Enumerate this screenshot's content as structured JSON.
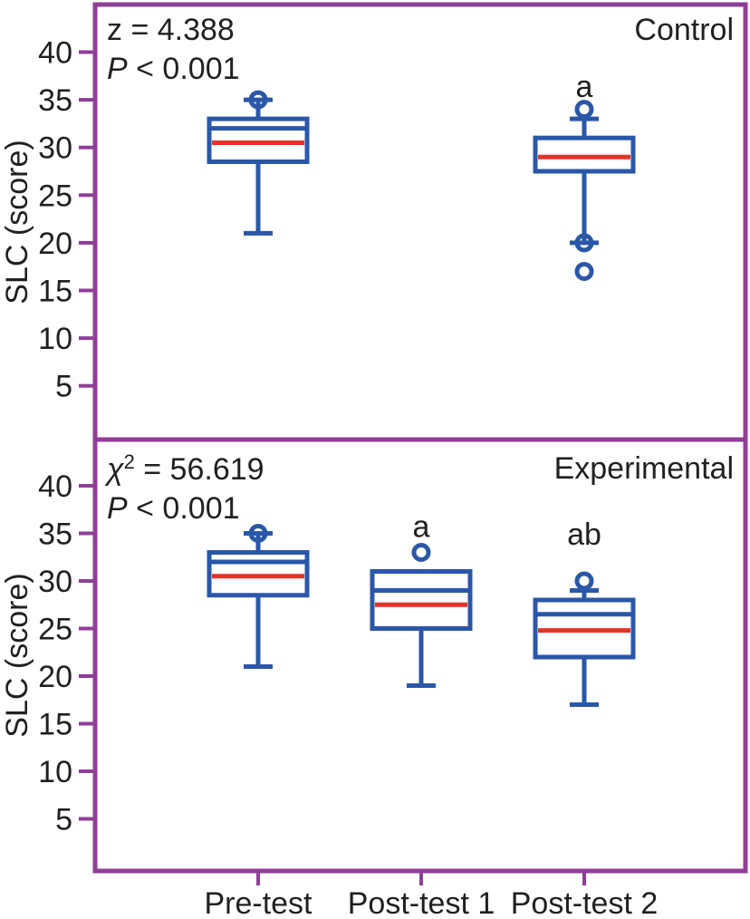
{
  "figure": {
    "x_axis_categories": [
      "Pre-test",
      "Post-test 1",
      "Post-test 2"
    ],
    "colors": {
      "frame_purple": "#8f3e97",
      "box_blue": "#2b57a8",
      "line_red": "#e53228",
      "text": "#231f20",
      "background": "#ffffff"
    }
  },
  "chart_data": [
    {
      "type": "box",
      "panel_label": "Control",
      "stat_line1": {
        "base": "z",
        "sup": "",
        "tail": " = 4.388",
        "italic_base": false
      },
      "stat_line2": {
        "base": "P",
        "sup": "",
        "tail": " < 0.001",
        "italic_base": true
      },
      "ylabel": "SLC (score)",
      "yticks": [
        5,
        10,
        15,
        20,
        25,
        30,
        35,
        40
      ],
      "ylim": [
        0,
        44
      ],
      "grid": false,
      "categories": [
        "Pre-test",
        "Post-test 1",
        "Post-test 2"
      ],
      "boxes": [
        {
          "category": "Pre-test",
          "cat_index": 0,
          "whisker_low": 21,
          "q1": 28.5,
          "median_blue": 32,
          "red_line": 30.5,
          "q3": 33,
          "whisker_high": 35,
          "outliers": [
            35
          ],
          "sig": "",
          "sig_v": null
        },
        {
          "category": "Post-test 2",
          "cat_index": 2,
          "whisker_low": 20,
          "q1": 27.5,
          "median_blue": null,
          "red_line": 29,
          "q3": 31,
          "whisker_high": 33,
          "outliers": [
            34,
            20,
            17
          ],
          "sig": "a",
          "sig_v": 35.3
        }
      ]
    },
    {
      "type": "box",
      "panel_label": "Experimental",
      "stat_line1": {
        "base": "χ",
        "sup": "2",
        "tail": " = 56.619",
        "italic_base": true
      },
      "stat_line2": {
        "base": "P",
        "sup": "",
        "tail": " < 0.001",
        "italic_base": true
      },
      "ylabel": "SLC (score)",
      "yticks": [
        5,
        10,
        15,
        20,
        25,
        30,
        35,
        40
      ],
      "ylim": [
        0,
        44
      ],
      "grid": false,
      "categories": [
        "Pre-test",
        "Post-test 1",
        "Post-test 2"
      ],
      "boxes": [
        {
          "category": "Pre-test",
          "cat_index": 0,
          "whisker_low": 21,
          "q1": 28.5,
          "median_blue": 32,
          "red_line": 30.5,
          "q3": 33,
          "whisker_high": 35,
          "outliers": [
            35
          ],
          "sig": "",
          "sig_v": null
        },
        {
          "category": "Post-test 1",
          "cat_index": 1,
          "whisker_low": 19,
          "q1": 25,
          "median_blue": 29,
          "red_line": 27.5,
          "q3": 31,
          "whisker_high": null,
          "outliers": [
            33
          ],
          "sig": "a",
          "sig_v": 34.6
        },
        {
          "category": "Post-test 2",
          "cat_index": 2,
          "whisker_low": 17,
          "q1": 22,
          "median_blue": 26.5,
          "red_line": 24.8,
          "q3": 28,
          "whisker_high": 29,
          "outliers": [
            30
          ],
          "sig": "ab",
          "sig_v": 33.8
        }
      ]
    }
  ]
}
